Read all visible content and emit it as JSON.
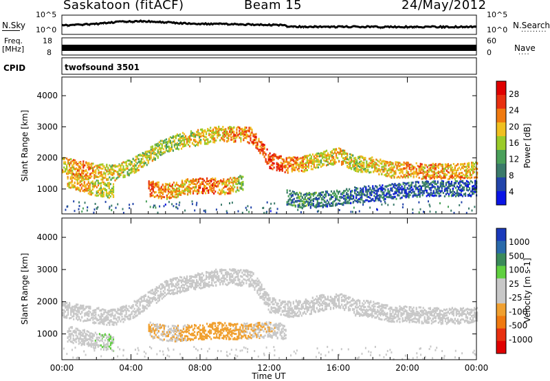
{
  "header": {
    "station": "Saskatoon (fitACF)",
    "beam": "Beam 15",
    "date": "24/May/2012"
  },
  "status_panels": {
    "noise": {
      "left_label": "N.Sky",
      "right_label": "N.Search",
      "ticks": [
        "10^5",
        "10^0"
      ]
    },
    "frequency": {
      "left_label_line1": "Freq.",
      "left_label_line2": "[MHz]",
      "left_ticks": [
        "18",
        "8"
      ],
      "right_label": "Nave",
      "right_ticks": [
        "60",
        "0"
      ]
    },
    "cpid": {
      "label": "CPID",
      "mode": "twofsound 3501"
    }
  },
  "colors": {
    "power_scale": [
      "#0a14e6",
      "#2244aa",
      "#3a7a6a",
      "#4aa05a",
      "#9acb2a",
      "#f0c020",
      "#f07a10",
      "#e83010",
      "#e00000"
    ],
    "velocity_scale": [
      "#e00000",
      "#e83010",
      "#f07a10",
      "#f0a030",
      "#c8c8c8",
      "#c8c8c8",
      "#60d040",
      "#3a8a5a",
      "#2a6aaa",
      "#1a3abb"
    ]
  },
  "chart_data": [
    {
      "type": "heatmap",
      "name": "power",
      "xlabel": "",
      "ylabel": "Slant Range [km]",
      "x_ticks": [
        "00:00",
        "04:00",
        "08:00",
        "12:00",
        "16:00",
        "20:00",
        "00:00"
      ],
      "y_ticks": [
        1000,
        2000,
        3000,
        4000
      ],
      "ylim": [
        200,
        4600
      ],
      "colorbar": {
        "label": "Power [dB]",
        "ticks": [
          "4",
          "8",
          "12",
          "16",
          "20",
          "24",
          "28"
        ],
        "range": [
          0,
          30
        ]
      },
      "echo_bands": [
        {
          "t_start": 0.0,
          "t_end": 24.0,
          "range_km_by_hour": [
            1750,
            1650,
            1550,
            1500,
            1700,
            2050,
            2400,
            2550,
            2650,
            2750,
            2750,
            2700,
            1900,
            1750,
            1800,
            1950,
            2050,
            1800,
            1750,
            1600,
            1600,
            1550,
            1550,
            1550,
            1600
          ],
          "power_db_by_hour": [
            18,
            22,
            20,
            16,
            16,
            16,
            14,
            16,
            18,
            18,
            20,
            22,
            26,
            22,
            20,
            16,
            18,
            16,
            18,
            18,
            20,
            20,
            20,
            20,
            18
          ]
        },
        {
          "t_start": 0.3,
          "t_end": 3.0,
          "range_km_by_hour": [
            1300,
            1050,
            900
          ],
          "power_db_by_hour": [
            20,
            18,
            14
          ]
        },
        {
          "t_start": 5.0,
          "t_end": 10.5,
          "range_km_by_hour": [
            1000,
            900,
            1050,
            1100,
            1050,
            1200
          ],
          "power_db_by_hour": [
            22,
            20,
            18,
            24,
            20,
            14
          ]
        },
        {
          "t_start": 13.0,
          "t_end": 24.0,
          "range_km_by_hour": [
            700,
            600,
            650,
            700,
            800,
            850,
            900,
            950,
            1000,
            1000,
            1000,
            1000
          ],
          "power_db_by_hour": [
            8,
            10,
            8,
            8,
            6,
            6,
            6,
            6,
            6,
            6,
            6,
            6
          ]
        }
      ]
    },
    {
      "type": "heatmap",
      "name": "velocity",
      "xlabel": "Time UT",
      "ylabel": "Slant Range [km]",
      "x_ticks": [
        "00:00",
        "04:00",
        "08:00",
        "12:00",
        "16:00",
        "20:00",
        "00:00"
      ],
      "y_ticks": [
        1000,
        2000,
        3000,
        4000
      ],
      "ylim": [
        200,
        4600
      ],
      "colorbar": {
        "label": "Velocity [m s-1]",
        "ticks": [
          "1000",
          "500",
          "100",
          "25",
          "-25",
          "-100",
          "-500",
          "-1000"
        ],
        "range": [
          -1200,
          1200
        ]
      },
      "echo_bands": [
        {
          "t_start": 0.0,
          "t_end": 24.0,
          "range_km_by_hour": [
            1750,
            1650,
            1550,
            1500,
            1700,
            2050,
            2400,
            2550,
            2650,
            2750,
            2750,
            2700,
            1900,
            1750,
            1800,
            1950,
            2050,
            1800,
            1750,
            1600,
            1600,
            1550,
            1550,
            1550,
            1600
          ],
          "velocity_by_hour": [
            0,
            0,
            0,
            0,
            0,
            0,
            0,
            0,
            0,
            0,
            0,
            0,
            0,
            0,
            0,
            0,
            0,
            0,
            0,
            0,
            0,
            0,
            0,
            0,
            0
          ]
        },
        {
          "t_start": 0.3,
          "t_end": 3.0,
          "range_km_by_hour": [
            1000,
            800,
            700
          ],
          "velocity_by_hour": [
            80,
            150,
            250
          ]
        },
        {
          "t_start": 5.0,
          "t_end": 13.0,
          "range_km_by_hour": [
            1100,
            1000,
            1000,
            1050,
            1100,
            1050,
            1100,
            1100,
            1050
          ],
          "velocity_by_hour": [
            -300,
            -200,
            -250,
            -400,
            -350,
            -300,
            -250,
            -200,
            -150
          ]
        }
      ]
    }
  ]
}
